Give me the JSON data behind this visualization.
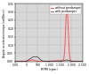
{
  "title": "",
  "xlabel": "RPM (rpm)",
  "ylabel": "Angular acceleration/torque (rad/Nm s²)",
  "xlim": [
    -500,
    2500
  ],
  "ylim": [
    0,
    0.35
  ],
  "yticks": [
    0.0,
    0.05,
    0.1,
    0.15,
    0.2,
    0.25,
    0.3,
    0.35
  ],
  "xticks": [
    -500,
    0,
    500,
    1000,
    1500,
    2000,
    2500
  ],
  "xtick_labels": [
    "-500",
    "0",
    "500",
    "1 000",
    "1 500",
    "2 000",
    "2 500"
  ],
  "legend_with": "with predamper",
  "legend_without": "without predamper",
  "color_with": "#333333",
  "color_without": "#ff5555",
  "peak_rpm": 1800,
  "background_color": "#ffffff",
  "plot_bg_color": "#d8d8d8",
  "grid_color": "#bbbbbb"
}
